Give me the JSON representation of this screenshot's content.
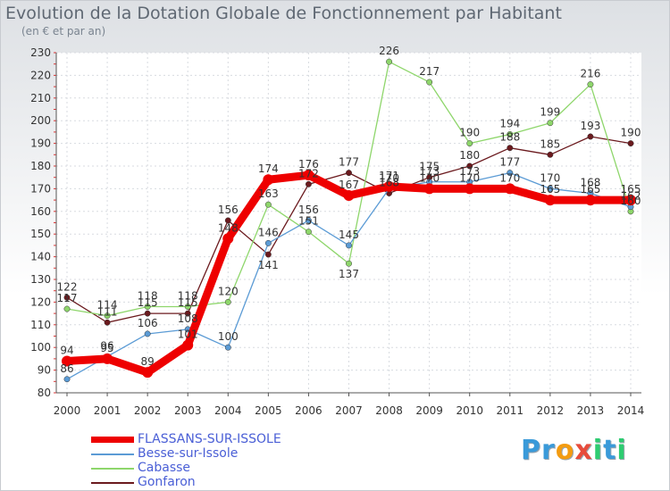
{
  "header": {
    "title": "Evolution de la Dotation Globale de Fonctionnement par Habitant",
    "subtitle": "(en € et par an)"
  },
  "chart_data": {
    "type": "line",
    "title": "Evolution de la Dotation Globale de Fonctionnement par Habitant",
    "subtitle": "(en € et par an)",
    "xlabel": "",
    "ylabel": "",
    "ylim": [
      80,
      230
    ],
    "ytick_step": 10,
    "grid": true,
    "legend_position": "bottom-left",
    "categories": [
      "2000",
      "2001",
      "2002",
      "2003",
      "2004",
      "2005",
      "2006",
      "2007",
      "2008",
      "2009",
      "2010",
      "2011",
      "2012",
      "2013",
      "2014"
    ],
    "series": [
      {
        "name": "Gonfaron",
        "color": "#6b1a1e",
        "values": [
          122,
          111,
          115,
          115,
          156,
          141,
          172,
          177,
          168,
          175,
          180,
          188,
          185,
          193,
          190
        ],
        "label_positions": [
          "above",
          "above",
          "above",
          "above",
          "above",
          "below",
          "above",
          "above",
          "above",
          "above",
          "above",
          "above",
          "above",
          "above",
          "above"
        ]
      },
      {
        "name": "Cabasse",
        "color": "#8ed66b",
        "values": [
          117,
          114,
          118,
          118,
          120,
          163,
          151,
          137,
          226,
          217,
          190,
          194,
          199,
          216,
          160
        ],
        "label_positions": [
          "above",
          "above",
          "above",
          "above",
          "above",
          "above",
          "above",
          "below",
          "above",
          "above",
          "above",
          "above",
          "above",
          "above",
          "above"
        ]
      },
      {
        "name": "Besse-sur-Issole",
        "color": "#5b9bd5",
        "values": [
          86,
          96,
          106,
          108,
          100,
          146,
          156,
          145,
          170,
          173,
          173,
          177,
          170,
          168,
          162
        ],
        "label_positions": [
          "above",
          "above",
          "above",
          "above",
          "above",
          "above",
          "above",
          "above",
          "above",
          "above",
          "above",
          "above",
          "above",
          "above",
          "above"
        ]
      },
      {
        "name": "FLASSANS-SUR-ISSOLE",
        "color": "#ee0000",
        "values": [
          94,
          95,
          89,
          101,
          148,
          174,
          176,
          167,
          171,
          170,
          170,
          170,
          165,
          165,
          165
        ],
        "label_positions": [
          "above",
          "above",
          "above",
          "above",
          "above",
          "above",
          "above",
          "above",
          "above",
          "above",
          "above",
          "above",
          "above",
          "above",
          "above"
        ]
      }
    ]
  },
  "legend": {
    "items": [
      {
        "label": "FLASSANS-SUR-ISSOLE",
        "color": "#ee0000",
        "text_color": "#4a5fd6"
      },
      {
        "label": "Besse-sur-Issole",
        "color": "#5b9bd5",
        "text_color": "#4a5fd6"
      },
      {
        "label": "Cabasse",
        "color": "#8ed66b",
        "text_color": "#4a5fd6"
      },
      {
        "label": "Gonfaron",
        "color": "#6b1a1e",
        "text_color": "#4a5fd6"
      }
    ]
  },
  "logo": {
    "text": "Proxiti"
  }
}
